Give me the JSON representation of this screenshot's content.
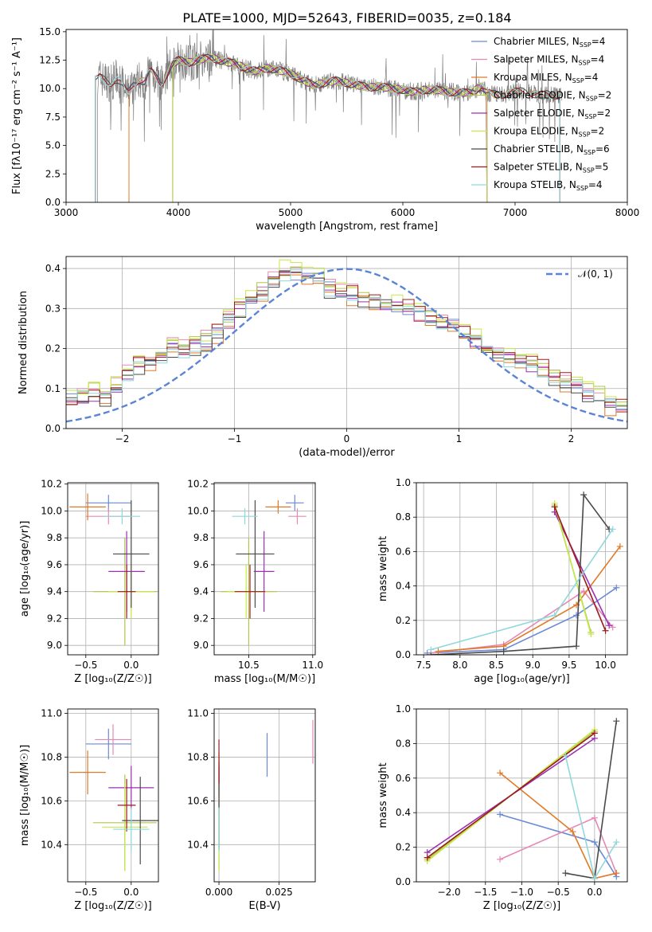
{
  "figure_title": "PLATE=1000, MJD=52643, FIBERID=0035, z=0.184",
  "models": [
    {
      "name": "Chabrier MILES",
      "nssp": "4",
      "color": "#6a8ad6"
    },
    {
      "name": "Salpeter MILES",
      "nssp": "4",
      "color": "#e688b4"
    },
    {
      "name": "Kroupa MILES",
      "nssp": "4",
      "color": "#e07a27"
    },
    {
      "name": "Chabrier ELODIE",
      "nssp": "2",
      "color": "#b1c64a"
    },
    {
      "name": "Salpeter ELODIE",
      "nssp": "2",
      "color": "#9b30b0"
    },
    {
      "name": "Kroupa ELODIE",
      "nssp": "2",
      "color": "#c4e84a"
    },
    {
      "name": "Chabrier STELIB",
      "nssp": "6",
      "color": "#4a4a4a"
    },
    {
      "name": "Salpeter STELIB",
      "nssp": "5",
      "color": "#9b1b1b"
    },
    {
      "name": "Kroupa STELIB",
      "nssp": "4",
      "color": "#8fd8dc"
    }
  ],
  "legend_subscript": "SSP",
  "chart_data": [
    {
      "id": "spectrum",
      "type": "line",
      "xlabel": "wavelength [Angstrom, rest frame]",
      "ylabel": "Flux [fλ10⁻¹⁷ erg cm⁻² s⁻¹ A⁻¹]",
      "xlim": [
        3000,
        8000
      ],
      "ylim": [
        0,
        15.2
      ],
      "xticks": [
        "3000",
        "4000",
        "5000",
        "6000",
        "7000",
        "8000"
      ],
      "yticks": [
        "0.0",
        "2.5",
        "5.0",
        "7.5",
        "10.0",
        "12.5",
        "15.0"
      ],
      "legend_position": "right",
      "data": {
        "x": [
          3280,
          3300,
          3350,
          3400,
          3450,
          3500,
          3550,
          3600,
          3650,
          3700,
          3750,
          3800,
          3850,
          3900,
          3950,
          4000,
          4100,
          4200,
          4300,
          4400,
          4500,
          4600,
          4700,
          4800,
          4900,
          5000,
          5100,
          5200,
          5300,
          5400,
          5500,
          5600,
          5700,
          5800,
          5900,
          6000,
          6100,
          6200,
          6300,
          6400,
          6500,
          6600,
          6700,
          6750,
          6800,
          6900,
          7000,
          7100,
          7200,
          7300,
          7400
        ],
        "y": [
          10.8,
          11.0,
          10.7,
          10.5,
          10.9,
          10.3,
          9.5,
          10.4,
          10.8,
          10.6,
          11.6,
          11.0,
          10.4,
          11.3,
          12.2,
          12.5,
          12.3,
          12.6,
          12.7,
          12.4,
          12.2,
          11.8,
          11.5,
          11.8,
          11.6,
          11.3,
          10.8,
          10.3,
          10.5,
          10.7,
          10.5,
          10.3,
          10.1,
          10.2,
          10.0,
          9.9,
          9.7,
          9.9,
          9.9,
          9.7,
          9.7,
          9.6,
          10.2,
          9.6,
          9.5,
          9.5,
          9.7,
          9.8,
          9.4,
          9.5,
          9.4
        ],
        "model_starts": [
          3560,
          3560,
          3560,
          3950,
          3950,
          3950,
          3260,
          3260,
          3260
        ],
        "model_ends": [
          6750,
          6750,
          7400,
          6750,
          6750,
          6750,
          7400,
          7400,
          7400
        ]
      }
    },
    {
      "id": "residuals",
      "type": "line",
      "xlabel": "(data-model)/error",
      "ylabel": "Normed distribution",
      "xlim": [
        -2.5,
        2.5
      ],
      "ylim": [
        0,
        0.43
      ],
      "xticks": [
        "−2",
        "−1",
        "0",
        "1",
        "2"
      ],
      "yticks": [
        "0.0",
        "0.1",
        "0.2",
        "0.3",
        "0.4"
      ],
      "legend": "𝒩(0, 1)",
      "legend_position": "top-right",
      "grid": true,
      "data": {
        "bin_start": -2.5,
        "bin_width": 0.1,
        "template": [
          0.07,
          0.085,
          0.09,
          0.08,
          0.105,
          0.14,
          0.16,
          0.165,
          0.185,
          0.2,
          0.195,
          0.21,
          0.22,
          0.24,
          0.27,
          0.3,
          0.32,
          0.34,
          0.37,
          0.39,
          0.385,
          0.375,
          0.37,
          0.35,
          0.34,
          0.335,
          0.33,
          0.32,
          0.315,
          0.305,
          0.3,
          0.29,
          0.285,
          0.27,
          0.26,
          0.24,
          0.22,
          0.2,
          0.19,
          0.175,
          0.17,
          0.165,
          0.15,
          0.13,
          0.12,
          0.105,
          0.09,
          0.08,
          0.06,
          0.05
        ],
        "offsets": [
          0.0,
          0.01,
          -0.012,
          0.008,
          -0.006,
          0.014,
          -0.01,
          0.006,
          -0.004
        ]
      }
    },
    {
      "id": "age_vs_Z",
      "type": "scatter",
      "xlabel": "Z [log₁₀(Z/Z☉)]",
      "ylabel": "age  [log₁₀(age/yr)]",
      "xlim": [
        -0.7,
        0.3
      ],
      "ylim": [
        8.93,
        10.21
      ],
      "xticks": [
        "−0.5",
        "0.0"
      ],
      "yticks": [
        "9.0",
        "9.2",
        "9.4",
        "9.6",
        "9.8",
        "10.0",
        "10.2"
      ],
      "grid": true,
      "data": [
        {
          "model": 0,
          "x": -0.25,
          "y": 10.06,
          "xerr": 0.25,
          "yerr": 0.06
        },
        {
          "model": 1,
          "x": -0.25,
          "y": 9.96,
          "xerr": 0.25,
          "yerr": 0.06
        },
        {
          "model": 2,
          "x": -0.48,
          "y": 10.03,
          "xerr": 0.2,
          "yerr": 0.1
        },
        {
          "model": 3,
          "x": -0.07,
          "y": 9.4,
          "xerr": 0.35,
          "yerr": 0.4
        },
        {
          "model": 4,
          "x": -0.05,
          "y": 9.55,
          "xerr": 0.2,
          "yerr": 0.3
        },
        {
          "model": 5,
          "x": 0.0,
          "y": 9.4,
          "xerr": 0.25,
          "yerr": 0.2
        },
        {
          "model": 6,
          "x": 0.0,
          "y": 9.68,
          "xerr": 0.2,
          "yerr": 0.4
        },
        {
          "model": 7,
          "x": -0.05,
          "y": 9.4,
          "xerr": 0.1,
          "yerr": 0.2
        },
        {
          "model": 8,
          "x": -0.1,
          "y": 9.96,
          "xerr": 0.2,
          "yerr": 0.06
        }
      ]
    },
    {
      "id": "age_vs_mass",
      "type": "scatter",
      "xlabel": "mass [log₁₀(M/M☉)]",
      "ylabel": "",
      "xlim": [
        10.23,
        11.02
      ],
      "ylim": [
        8.93,
        10.21
      ],
      "xticks": [
        "10.5",
        "11.0"
      ],
      "yticks": [
        "9.0",
        "9.2",
        "9.4",
        "9.6",
        "9.8",
        "10.0",
        "10.2"
      ],
      "grid": true,
      "data": [
        {
          "model": 0,
          "x": 10.86,
          "y": 10.06,
          "xerr": 0.07,
          "yerr": 0.06
        },
        {
          "model": 1,
          "x": 10.88,
          "y": 9.96,
          "xerr": 0.07,
          "yerr": 0.06
        },
        {
          "model": 2,
          "x": 10.73,
          "y": 10.03,
          "xerr": 0.1,
          "yerr": 0.05
        },
        {
          "model": 3,
          "x": 10.5,
          "y": 9.4,
          "xerr": 0.22,
          "yerr": 0.4
        },
        {
          "model": 4,
          "x": 10.62,
          "y": 9.55,
          "xerr": 0.08,
          "yerr": 0.3
        },
        {
          "model": 5,
          "x": 10.48,
          "y": 9.4,
          "xerr": 0.15,
          "yerr": 0.2
        },
        {
          "model": 6,
          "x": 10.55,
          "y": 9.68,
          "xerr": 0.15,
          "yerr": 0.4
        },
        {
          "model": 7,
          "x": 10.51,
          "y": 9.4,
          "xerr": 0.12,
          "yerr": 0.2
        },
        {
          "model": 8,
          "x": 10.47,
          "y": 9.96,
          "xerr": 0.1,
          "yerr": 0.06
        }
      ]
    },
    {
      "id": "weight_vs_age",
      "type": "line",
      "xlabel": "age  [log₁₀(age/yr)]",
      "ylabel": "mass weight",
      "xlim": [
        7.4,
        10.3
      ],
      "ylim": [
        0,
        1.0
      ],
      "xticks": [
        "7.5",
        "8.0",
        "8.5",
        "9.0",
        "9.5",
        "10.0"
      ],
      "yticks": [
        "0.0",
        "0.2",
        "0.4",
        "0.6",
        "0.8",
        "1.0"
      ],
      "grid": true,
      "data": [
        {
          "model": 0,
          "x": [
            7.55,
            8.6,
            9.6,
            10.15
          ],
          "y": [
            0.01,
            0.03,
            0.23,
            0.39
          ]
        },
        {
          "model": 1,
          "x": [
            7.6,
            8.6,
            9.7,
            10.1
          ],
          "y": [
            0.01,
            0.06,
            0.37,
            0.16
          ]
        },
        {
          "model": 2,
          "x": [
            7.7,
            8.6,
            9.6,
            10.2
          ],
          "y": [
            0.02,
            0.05,
            0.29,
            0.63
          ]
        },
        {
          "model": 3,
          "x": [
            9.3,
            9.8
          ],
          "y": [
            0.87,
            0.13
          ]
        },
        {
          "model": 4,
          "x": [
            9.3,
            10.05
          ],
          "y": [
            0.83,
            0.17
          ]
        },
        {
          "model": 5,
          "x": [
            9.3,
            9.8
          ],
          "y": [
            0.88,
            0.12
          ]
        },
        {
          "model": 6,
          "x": [
            7.6,
            8.6,
            9.6,
            9.7,
            10.05
          ],
          "y": [
            0.0,
            0.02,
            0.05,
            0.93,
            0.73
          ]
        },
        {
          "model": 7,
          "x": [
            9.3,
            10.0
          ],
          "y": [
            0.86,
            0.14
          ]
        },
        {
          "model": 8,
          "x": [
            7.6,
            9.3,
            10.1
          ],
          "y": [
            0.03,
            0.23,
            0.73
          ]
        }
      ]
    },
    {
      "id": "mass_vs_Z",
      "type": "scatter",
      "xlabel": "Z [log₁₀(Z/Z☉)]",
      "ylabel": "mass [log₁₀(M/M☉)]",
      "xlim": [
        -0.7,
        0.3
      ],
      "ylim": [
        10.23,
        11.02
      ],
      "xticks": [
        "−0.5",
        "0.0"
      ],
      "yticks": [
        "10.4",
        "10.6",
        "10.8",
        "11.0"
      ],
      "grid": true,
      "data": [
        {
          "model": 0,
          "x": -0.25,
          "y": 10.86,
          "xerr": 0.25,
          "yerr": 0.07
        },
        {
          "model": 1,
          "x": -0.2,
          "y": 10.88,
          "xerr": 0.2,
          "yerr": 0.07
        },
        {
          "model": 2,
          "x": -0.48,
          "y": 10.73,
          "xerr": 0.2,
          "yerr": 0.1
        },
        {
          "model": 3,
          "x": -0.07,
          "y": 10.5,
          "xerr": 0.35,
          "yerr": 0.22
        },
        {
          "model": 4,
          "x": 0.0,
          "y": 10.66,
          "xerr": 0.25,
          "yerr": 0.1
        },
        {
          "model": 5,
          "x": -0.07,
          "y": 10.48,
          "xerr": 0.25,
          "yerr": 0.2
        },
        {
          "model": 6,
          "x": 0.1,
          "y": 10.51,
          "xerr": 0.2,
          "yerr": 0.2
        },
        {
          "model": 7,
          "x": -0.05,
          "y": 10.58,
          "xerr": 0.1,
          "yerr": 0.12
        },
        {
          "model": 8,
          "x": 0.0,
          "y": 10.47,
          "xerr": 0.2,
          "yerr": 0.1
        }
      ]
    },
    {
      "id": "mass_vs_ebv",
      "type": "scatter",
      "xlabel": "E(B-V)",
      "ylabel": "",
      "xlim": [
        -0.002,
        0.04
      ],
      "ylim": [
        10.23,
        11.02
      ],
      "xticks": [
        "0.000",
        "0.025"
      ],
      "yticks": [
        "10.4",
        "10.6",
        "10.8",
        "11.0"
      ],
      "grid": true,
      "data": [
        {
          "model": 0,
          "x": 0.02,
          "y": 10.81,
          "yerr": 0.1
        },
        {
          "model": 1,
          "x": 0.039,
          "y": 10.87,
          "yerr": 0.1
        },
        {
          "model": 2,
          "x": 0.0,
          "y": 10.72,
          "yerr": 0.1
        },
        {
          "model": 3,
          "x": 0.0,
          "y": 10.5,
          "yerr": 0.22
        },
        {
          "model": 4,
          "x": 0.0,
          "y": 10.66,
          "yerr": 0.1
        },
        {
          "model": 5,
          "x": 0.0,
          "y": 10.48,
          "yerr": 0.2
        },
        {
          "model": 6,
          "x": 0.0,
          "y": 10.58,
          "yerr": 0.2
        },
        {
          "model": 7,
          "x": 0.0,
          "y": 10.78,
          "yerr": 0.1
        },
        {
          "model": 8,
          "x": 0.0,
          "y": 10.47,
          "yerr": 0.1
        }
      ]
    },
    {
      "id": "weight_vs_Z",
      "type": "line",
      "xlabel": "Z [log₁₀(Z/Z☉)]",
      "ylabel": "mass weight",
      "xlim": [
        -2.45,
        0.45
      ],
      "ylim": [
        0,
        1.0
      ],
      "xticks": [
        "−2.0",
        "−1.5",
        "−1.0",
        "−0.5",
        "0.0"
      ],
      "yticks": [
        "0.0",
        "0.2",
        "0.4",
        "0.6",
        "0.8",
        "1.0"
      ],
      "grid": true,
      "data": [
        {
          "model": 0,
          "x": [
            -1.3,
            0.0,
            0.3
          ],
          "y": [
            0.39,
            0.23,
            0.03
          ]
        },
        {
          "model": 1,
          "x": [
            -1.3,
            0.0,
            0.3
          ],
          "y": [
            0.13,
            0.37,
            0.05
          ]
        },
        {
          "model": 2,
          "x": [
            -1.3,
            -0.3,
            0.0,
            0.3
          ],
          "y": [
            0.63,
            0.29,
            0.02,
            0.05
          ]
        },
        {
          "model": 3,
          "x": [
            -2.3,
            0.0
          ],
          "y": [
            0.13,
            0.87
          ]
        },
        {
          "model": 4,
          "x": [
            -2.3,
            0.0
          ],
          "y": [
            0.17,
            0.83
          ]
        },
        {
          "model": 5,
          "x": [
            -2.3,
            0.0
          ],
          "y": [
            0.12,
            0.88
          ]
        },
        {
          "model": 6,
          "x": [
            -0.4,
            0.0,
            0.3
          ],
          "y": [
            0.05,
            0.02,
            0.93
          ]
        },
        {
          "model": 7,
          "x": [
            -2.3,
            0.0
          ],
          "y": [
            0.14,
            0.86
          ]
        },
        {
          "model": 8,
          "x": [
            -0.4,
            0.0,
            0.3
          ],
          "y": [
            0.73,
            0.02,
            0.23
          ]
        }
      ]
    }
  ]
}
